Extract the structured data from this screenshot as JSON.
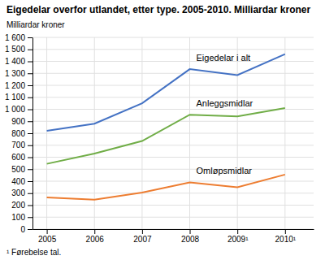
{
  "chart_data": {
    "type": "line",
    "title": "Eigedelar overfor utlandet, etter type. 2005-2010. Milliardar kroner",
    "ylabel": "Milliardar kroner",
    "footnote": "¹ Førebelse tal.",
    "x": [
      2005,
      2006,
      2007,
      2008,
      2009,
      2010
    ],
    "xlim": [
      2004.7,
      2010.6
    ],
    "xticks": [
      2005,
      2006,
      2007,
      2008,
      {
        "value": 2009,
        "label": "2009¹"
      },
      {
        "value": 2010,
        "label": "2010¹"
      }
    ],
    "series": [
      {
        "name": "Eigedelar i alt",
        "color": "#4472C4",
        "values": [
          820,
          880,
          1050,
          1335,
          1285,
          1460
        ]
      },
      {
        "name": "Anleggsmidlar",
        "color": "#70AD47",
        "values": [
          545,
          630,
          735,
          955,
          940,
          1010
        ]
      },
      {
        "name": "Omløpsmidlar",
        "color": "#ED7D31",
        "values": [
          265,
          245,
          305,
          390,
          350,
          455
        ]
      }
    ],
    "ylim": [
      0,
      1600
    ],
    "yticks": [
      0,
      100,
      200,
      300,
      400,
      500,
      600,
      700,
      800,
      900,
      {
        "value": 1000,
        "label": "1 000"
      },
      {
        "value": 1100,
        "label": "1 100"
      },
      {
        "value": 1200,
        "label": "1 200"
      },
      {
        "value": 1300,
        "label": "1 300"
      },
      {
        "value": 1400,
        "label": "1 400"
      },
      {
        "value": 1500,
        "label": "1 500"
      },
      {
        "value": 1600,
        "label": "1 600"
      }
    ],
    "grid": true
  }
}
